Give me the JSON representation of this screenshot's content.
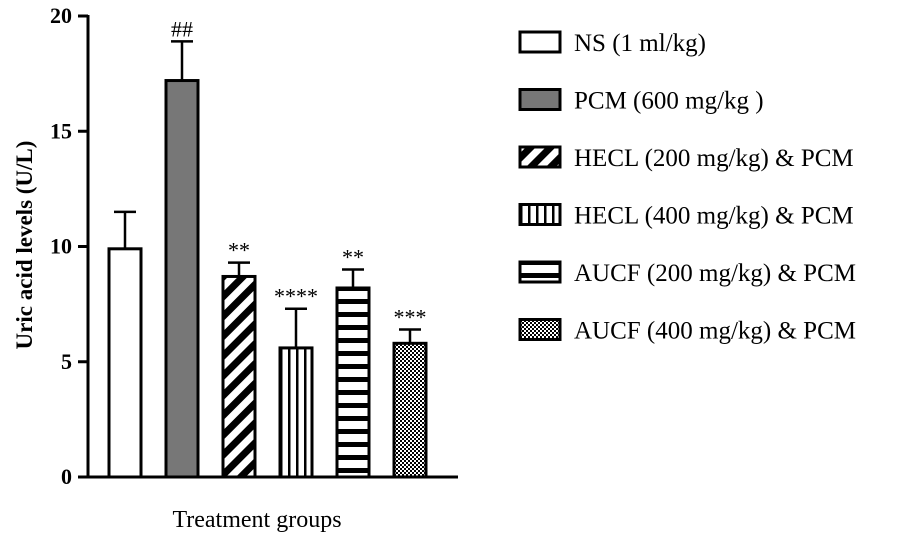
{
  "chart_data": {
    "type": "bar",
    "title": "",
    "xlabel": "Treatment groups",
    "ylabel": "Uric acid levels (U/L)",
    "ylim": [
      0,
      20
    ],
    "yticks": [
      0,
      5,
      10,
      15,
      20
    ],
    "groups": [
      {
        "name": "NS (1 ml/kg)",
        "value": 9.9,
        "error": 1.6,
        "significance": "",
        "fill": "white"
      },
      {
        "name": "PCM (600 mg/kg )",
        "value": 17.2,
        "error": 1.7,
        "significance": "##",
        "fill": "gray"
      },
      {
        "name": "HECL (200 mg/kg) & PCM",
        "value": 8.7,
        "error": 0.6,
        "significance": "**",
        "fill": "diagonal"
      },
      {
        "name": "HECL (400 mg/kg) & PCM",
        "value": 5.6,
        "error": 1.7,
        "significance": "****",
        "fill": "vertical"
      },
      {
        "name": "AUCF (200 mg/kg) & PCM",
        "value": 8.2,
        "error": 0.8,
        "significance": "**",
        "fill": "horizontal"
      },
      {
        "name": "AUCF (400 mg/kg) & PCM",
        "value": 5.8,
        "error": 0.6,
        "significance": "***",
        "fill": "checker"
      }
    ],
    "colors": {
      "gray": "#777777",
      "stroke": "#000000",
      "background": "#ffffff"
    }
  }
}
